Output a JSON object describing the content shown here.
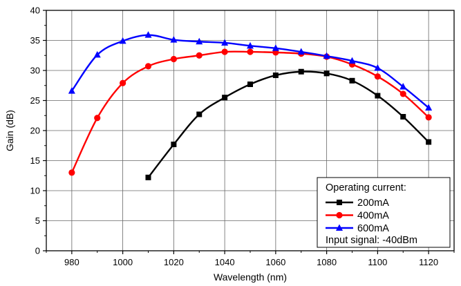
{
  "chart_data": {
    "type": "line",
    "xlabel": "Wavelength (nm)",
    "ylabel": "Gain (dB)",
    "xlim": [
      970,
      1130
    ],
    "ylim": [
      0,
      40
    ],
    "x_ticks": [
      980,
      1000,
      1020,
      1040,
      1060,
      1080,
      1100,
      1120
    ],
    "y_ticks": [
      0,
      5,
      10,
      15,
      20,
      25,
      30,
      35,
      40
    ],
    "grid": true,
    "legend": {
      "placement": "bottom-right",
      "header": "Operating current:",
      "footer": "Input signal: -40dBm"
    },
    "series": [
      {
        "name": "200mA",
        "color": "#000000",
        "marker": "square",
        "x": [
          1010,
          1020,
          1030,
          1040,
          1050,
          1060,
          1070,
          1080,
          1090,
          1100,
          1110,
          1120
        ],
        "values": [
          12.2,
          17.7,
          22.7,
          25.5,
          27.7,
          29.2,
          29.8,
          29.5,
          28.3,
          25.8,
          22.3,
          18.1
        ]
      },
      {
        "name": "400mA",
        "color": "#ff0000",
        "marker": "circle",
        "x": [
          980,
          990,
          1000,
          1010,
          1020,
          1030,
          1040,
          1050,
          1060,
          1070,
          1080,
          1090,
          1100,
          1110,
          1120
        ],
        "values": [
          13.0,
          22.1,
          27.9,
          30.7,
          31.9,
          32.5,
          33.1,
          33.1,
          33.0,
          32.8,
          32.3,
          31.0,
          29.0,
          26.1,
          22.2
        ]
      },
      {
        "name": "600mA",
        "color": "#0000ff",
        "marker": "triangle",
        "x": [
          980,
          990,
          1000,
          1010,
          1020,
          1030,
          1040,
          1050,
          1060,
          1070,
          1080,
          1090,
          1100,
          1110,
          1120
        ],
        "values": [
          26.6,
          32.6,
          34.9,
          35.9,
          35.1,
          34.8,
          34.6,
          34.1,
          33.7,
          33.1,
          32.4,
          31.6,
          30.4,
          27.3,
          23.8
        ]
      }
    ]
  }
}
